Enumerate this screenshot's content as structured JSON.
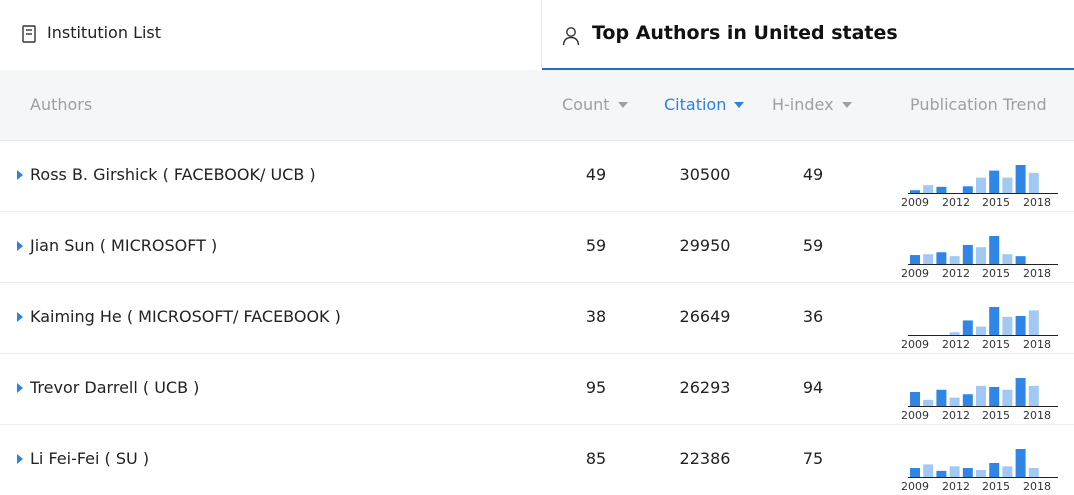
{
  "tabs": {
    "left": {
      "label": "Institution List",
      "icon": "document-icon"
    },
    "right": {
      "label": "Top Authors in United states",
      "icon": "user-icon"
    }
  },
  "table": {
    "headers": {
      "authors": "Authors",
      "count": "Count",
      "citation": "Citation",
      "hindex": "H-index",
      "trend": "Publication Trend"
    },
    "sort_column": "citation",
    "trend_ticks": [
      "2009",
      "2012",
      "2015",
      "2018"
    ],
    "rows": [
      {
        "name": "Ross B. Girshick ( FACEBOOK/ UCB )",
        "count": "49",
        "citation": "30500",
        "hindex": "49",
        "trend": [
          0.1,
          0.28,
          0.22,
          0.0,
          0.24,
          0.55,
          0.8,
          0.55,
          1.0,
          0.72
        ]
      },
      {
        "name": "Jian Sun ( MICROSOFT )",
        "count": "59",
        "citation": "29950",
        "hindex": "59",
        "trend": [
          0.32,
          0.35,
          0.42,
          0.28,
          0.68,
          0.6,
          1.0,
          0.35,
          0.28,
          0.0
        ]
      },
      {
        "name": "Kaiming He ( MICROSOFT/ FACEBOOK )",
        "count": "38",
        "citation": "26649",
        "hindex": "36",
        "trend": [
          0.0,
          0.0,
          0.0,
          0.1,
          0.52,
          0.3,
          1.0,
          0.65,
          0.68,
          0.88
        ]
      },
      {
        "name": "Trevor Darrell ( UCB )",
        "count": "95",
        "citation": "26293",
        "hindex": "94",
        "trend": [
          0.5,
          0.22,
          0.58,
          0.3,
          0.42,
          0.72,
          0.68,
          0.58,
          1.0,
          0.72
        ]
      },
      {
        "name": "Li Fei-Fei ( SU )",
        "count": "85",
        "citation": "22386",
        "hindex": "75",
        "trend": [
          0.32,
          0.45,
          0.22,
          0.38,
          0.32,
          0.25,
          0.5,
          0.38,
          1.0,
          0.32
        ]
      }
    ]
  },
  "colors": {
    "accent": "#2b82e0",
    "bar_dark": "#2f86e6",
    "bar_light": "#a2c9f3"
  }
}
